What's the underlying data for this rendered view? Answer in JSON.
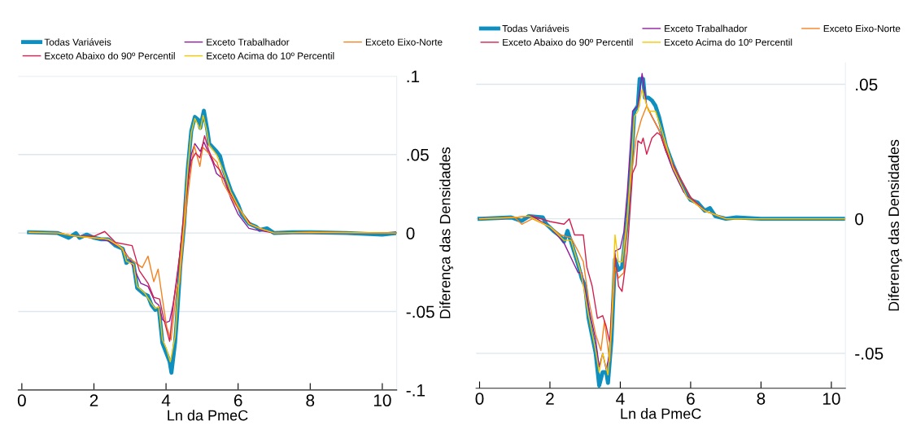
{
  "chart_data": [
    {
      "type": "line",
      "xlabel": "Ln da PmeC",
      "ylabel": "Diferença das Densidades",
      "xlim": [
        -0.1,
        10.4
      ],
      "ylim": [
        -0.1,
        0.1
      ],
      "xticks": [
        0,
        2,
        4,
        6,
        8,
        10
      ],
      "yticks": [
        {
          "value": -0.1,
          "label": "-.1"
        },
        {
          "value": -0.05,
          "label": "-.05"
        },
        {
          "value": 0,
          "label": "0"
        },
        {
          "value": 0.05,
          "label": ".05"
        },
        {
          "value": 0.1,
          "label": ".1"
        }
      ],
      "grid": "y",
      "legend": "top",
      "line_style": "solid",
      "marker": "none",
      "series": [
        {
          "name": "Todas Variáveis",
          "color": "#0e8fbf",
          "x": [
            0.2,
            1.0,
            1.3,
            1.5,
            1.6,
            1.8,
            2.0,
            2.2,
            2.4,
            2.6,
            2.8,
            2.9,
            3.0,
            3.1,
            3.2,
            3.4,
            3.5,
            3.6,
            3.7,
            3.8,
            3.9,
            4.0,
            4.1,
            4.15,
            4.25,
            4.3,
            4.4,
            4.5,
            4.6,
            4.7,
            4.8,
            4.9,
            4.95,
            5.05,
            5.15,
            5.2,
            5.4,
            5.5,
            5.6,
            5.8,
            6.0,
            6.1,
            6.3,
            6.5,
            6.6,
            6.8,
            7.0,
            7.5,
            8.0,
            9.0,
            10.0,
            10.4
          ],
          "values": [
            0.0005,
            0,
            -0.003,
            0,
            -0.003,
            -0.001,
            -0.003,
            -0.004,
            -0.004,
            -0.008,
            -0.01,
            -0.019,
            -0.017,
            -0.02,
            -0.035,
            -0.039,
            -0.04,
            -0.046,
            -0.049,
            -0.048,
            -0.07,
            -0.076,
            -0.082,
            -0.089,
            -0.07,
            -0.055,
            -0.02,
            0.005,
            0.04,
            0.065,
            0.074,
            0.072,
            0.067,
            0.078,
            0.065,
            0.057,
            0.052,
            0.049,
            0.04,
            0.027,
            0.018,
            0.012,
            0.006,
            0.004,
            0.002,
            0.003,
            0.0,
            0.0005,
            0.0005,
            0,
            -0.001,
            0
          ]
        },
        {
          "name": "Exceto Trabalhador",
          "color": "#8e1c9c",
          "x": [
            1.5,
            2.0,
            2.4,
            2.8,
            3.0,
            3.3,
            3.5,
            3.7,
            3.8,
            3.9,
            4.0,
            4.1,
            4.2,
            4.3,
            4.4,
            4.5,
            4.6,
            4.7,
            4.8,
            4.95,
            5.05,
            5.3,
            5.4,
            5.5,
            5.6,
            5.8,
            6.0,
            6.3,
            6.5,
            7.0,
            8.0,
            10.4
          ],
          "values": [
            -0.002,
            -0.003,
            -0.005,
            -0.01,
            -0.017,
            -0.032,
            -0.034,
            -0.044,
            -0.046,
            -0.055,
            -0.057,
            -0.056,
            -0.045,
            -0.03,
            -0.01,
            0.01,
            0.03,
            0.05,
            0.057,
            0.052,
            0.058,
            0.045,
            0.038,
            0.036,
            0.035,
            0.022,
            0.012,
            0.003,
            0.002,
            0,
            0.0005,
            0
          ]
        },
        {
          "name": "Exceto Eixo-Norte",
          "color": "#f5821f",
          "x": [
            0.2,
            1.0,
            1.5,
            2.0,
            2.4,
            2.7,
            2.96,
            3.34,
            3.5,
            3.66,
            3.78,
            3.9,
            4.02,
            4.14,
            4.3,
            4.38,
            4.5,
            4.62,
            4.78,
            4.94,
            5.02,
            5.18,
            5.42,
            5.58,
            5.9,
            6.3,
            6.6,
            7.0,
            8.0,
            10.4
          ],
          "values": [
            0.0005,
            0,
            -0.002,
            -0.003,
            -0.004,
            -0.008,
            -0.0157,
            -0.022,
            -0.0147,
            -0.031,
            -0.023,
            -0.042,
            -0.06,
            -0.068,
            -0.035,
            -0.031,
            0.002,
            0.027,
            0.056,
            0.0425,
            0.0547,
            0.051,
            0.045,
            0.032,
            0.019,
            0.006,
            0.003,
            0,
            0.0005,
            0
          ]
        },
        {
          "name": "Exceto Abaixo do 90º Percentil",
          "color": "#d31f4f",
          "x": [
            0.2,
            1.0,
            1.5,
            2.0,
            2.3,
            2.6,
            3.06,
            3.26,
            3.5,
            3.66,
            3.82,
            3.94,
            4.1,
            4.22,
            4.38,
            4.54,
            4.7,
            4.82,
            4.94,
            5.07,
            5.18,
            5.34,
            5.5,
            5.74,
            6.06,
            6.38,
            6.7,
            7.0,
            8.0,
            10.4
          ],
          "values": [
            0.0005,
            0,
            -0.002,
            -0.002,
            0.001,
            -0.006,
            -0.008,
            -0.024,
            -0.032,
            -0.041,
            -0.042,
            -0.055,
            -0.069,
            -0.042,
            -0.014,
            0.023,
            0.046,
            0.051,
            0.048,
            0.062,
            0.053,
            0.044,
            0.04,
            0.027,
            0.014,
            0.005,
            0.002,
            0,
            0.0005,
            0
          ]
        },
        {
          "name": "Exceto Acima do 10º Percentil",
          "color": "#f7c600",
          "x": [
            0.2,
            1.0,
            1.5,
            2.0,
            2.4,
            2.8,
            2.9,
            3.1,
            3.2,
            3.4,
            3.6,
            3.7,
            3.8,
            3.9,
            4.0,
            4.12,
            4.25,
            4.4,
            4.5,
            4.6,
            4.7,
            4.8,
            4.95,
            5.03,
            5.12,
            5.2,
            5.4,
            5.6,
            5.8,
            6.0,
            6.3,
            6.6,
            7.0,
            8.0,
            10.4
          ],
          "values": [
            0.0005,
            0,
            -0.002,
            -0.003,
            -0.004,
            -0.01,
            -0.018,
            -0.02,
            -0.034,
            -0.038,
            -0.045,
            -0.048,
            -0.047,
            -0.068,
            -0.073,
            -0.082,
            -0.066,
            -0.018,
            0.006,
            0.04,
            0.064,
            0.073,
            0.066,
            0.075,
            0.066,
            0.056,
            0.05,
            0.039,
            0.026,
            0.017,
            0.006,
            0.003,
            0,
            0.0005,
            0
          ]
        }
      ]
    },
    {
      "type": "line",
      "xlabel": "Ln da PmeC",
      "ylabel": "Diferença das Densidades",
      "xlim": [
        -0.1,
        10.4
      ],
      "ylim": [
        -0.063,
        0.058
      ],
      "xticks": [
        0,
        2,
        4,
        6,
        8,
        10
      ],
      "yticks": [
        {
          "value": -0.05,
          "label": "-.05"
        },
        {
          "value": 0,
          "label": "0"
        },
        {
          "value": 0.05,
          "label": ".05"
        }
      ],
      "grid": "y",
      "legend": "top",
      "line_style": "solid",
      "marker": "none",
      "series": [
        {
          "name": "Todas Variáveis",
          "color": "#0e8fbf",
          "x": [
            0,
            0.9,
            1.2,
            1.4,
            1.8,
            1.9,
            2.1,
            2.2,
            2.3,
            2.4,
            2.5,
            2.6,
            2.8,
            2.9,
            3.0,
            3.1,
            3.3,
            3.4,
            3.5,
            3.6,
            3.65,
            3.75,
            3.85,
            3.95,
            4.05,
            4.1,
            4.2,
            4.3,
            4.4,
            4.5,
            4.55,
            4.65,
            4.7,
            4.8,
            4.9,
            5.0,
            5.1,
            5.3,
            5.5,
            5.7,
            5.9,
            6.0,
            6.2,
            6.4,
            6.55,
            6.7,
            7.0,
            7.3,
            8.0,
            10.4
          ],
          "values": [
            0,
            0.0005,
            -0.0008,
            0.001,
            0.0005,
            -0.002,
            -0.0045,
            -0.0055,
            -0.0065,
            -0.0085,
            -0.0045,
            -0.0085,
            -0.017,
            -0.022,
            -0.025,
            -0.037,
            -0.05,
            -0.062,
            -0.057,
            -0.057,
            -0.061,
            -0.045,
            -0.015,
            -0.019,
            -0.018,
            -0.012,
            0.0,
            0.018,
            0.04,
            0.042,
            0.052,
            0.052,
            0.045,
            0.045,
            0.044,
            0.042,
            0.038,
            0.027,
            0.02,
            0.014,
            0.009,
            0.007,
            0.006,
            0.003,
            0.004,
            0.001,
            0.0,
            0.0005,
            0,
            0
          ]
        },
        {
          "name": "Exceto Trabalhador",
          "color": "#8e1c9c",
          "x": [
            0,
            1.0,
            1.5,
            2.0,
            2.4,
            2.8,
            2.9,
            3.1,
            3.3,
            3.4,
            3.5,
            3.6,
            3.7,
            3.85,
            4.0,
            4.1,
            4.2,
            4.35,
            4.5,
            4.62,
            4.75,
            4.9,
            5.1,
            5.3,
            5.5,
            5.8,
            6.0,
            6.4
          ],
          "values": [
            0,
            0.0005,
            0.001,
            -0.003,
            -0.009,
            -0.02,
            -0.02,
            -0.033,
            -0.045,
            -0.055,
            -0.05,
            -0.056,
            -0.05,
            -0.012,
            -0.011,
            -0.005,
            0.01,
            0.04,
            0.042,
            0.054,
            0.042,
            0.038,
            0.033,
            0.025,
            0.018,
            0.01,
            0.007,
            0.003
          ]
        },
        {
          "name": "Exceto Eixo-Norte",
          "color": "#f5821f",
          "x": [
            0,
            1.0,
            1.2,
            1.5,
            2.0,
            2.3,
            2.6,
            2.8,
            2.95,
            3.1,
            3.3,
            3.45,
            3.55,
            3.7,
            3.85,
            3.95,
            4.1,
            4.2,
            4.3,
            4.45,
            4.6,
            4.75,
            4.9,
            5.1,
            5.5,
            6.0,
            6.4,
            7.0,
            8.0,
            10.4
          ],
          "values": [
            0,
            0.0005,
            -0.002,
            0.0,
            -0.003,
            -0.006,
            -0.007,
            -0.012,
            -0.016,
            -0.03,
            -0.043,
            -0.049,
            -0.038,
            -0.053,
            -0.018,
            -0.022,
            -0.02,
            0.0,
            0.015,
            0.03,
            0.037,
            0.042,
            0.038,
            0.033,
            0.02,
            0.008,
            0.003,
            0,
            0,
            0
          ]
        },
        {
          "name": "Exceto Abaixo do 90º Percentil",
          "color": "#d31f4f",
          "x": [
            0,
            1.0,
            1.5,
            2.0,
            2.4,
            2.55,
            2.7,
            2.95,
            3.05,
            3.2,
            3.35,
            3.5,
            3.6,
            3.7,
            3.85,
            3.95,
            4.05,
            4.2,
            4.35,
            4.45,
            4.5,
            4.6,
            4.65,
            4.75,
            4.9,
            5.05,
            5.15,
            5.3,
            5.5,
            6.0,
            6.4,
            7.0
          ],
          "values": [
            0,
            0.0005,
            0.001,
            -0.001,
            -0.002,
            0.0,
            -0.006,
            -0.006,
            -0.018,
            -0.025,
            -0.037,
            -0.036,
            -0.04,
            -0.046,
            -0.013,
            -0.025,
            -0.027,
            -0.012,
            0.017,
            0.02,
            0.029,
            0.028,
            0.03,
            0.024,
            0.03,
            0.032,
            0.031,
            0.025,
            0.02,
            0.008,
            0.003,
            0
          ]
        },
        {
          "name": "Exceto Acima do 10º Percentil",
          "color": "#f7c600",
          "x": [
            0,
            1.0,
            1.4,
            2.0,
            2.4,
            2.6,
            2.9,
            3.1,
            3.3,
            3.4,
            3.5,
            3.65,
            3.75,
            3.85,
            3.95,
            4.05,
            4.2,
            4.3,
            4.4,
            4.5,
            4.62,
            4.8,
            5.0,
            5.2,
            5.5,
            5.9,
            6.4,
            7.0,
            8.0,
            10.4
          ],
          "values": [
            0,
            0.0005,
            0.001,
            -0.003,
            -0.008,
            -0.008,
            -0.021,
            -0.036,
            -0.049,
            -0.057,
            -0.05,
            -0.058,
            -0.04,
            -0.006,
            -0.016,
            -0.016,
            0.0,
            0.018,
            0.038,
            0.04,
            0.048,
            0.04,
            0.04,
            0.032,
            0.019,
            0.008,
            0.003,
            0,
            0,
            0
          ]
        }
      ]
    }
  ]
}
